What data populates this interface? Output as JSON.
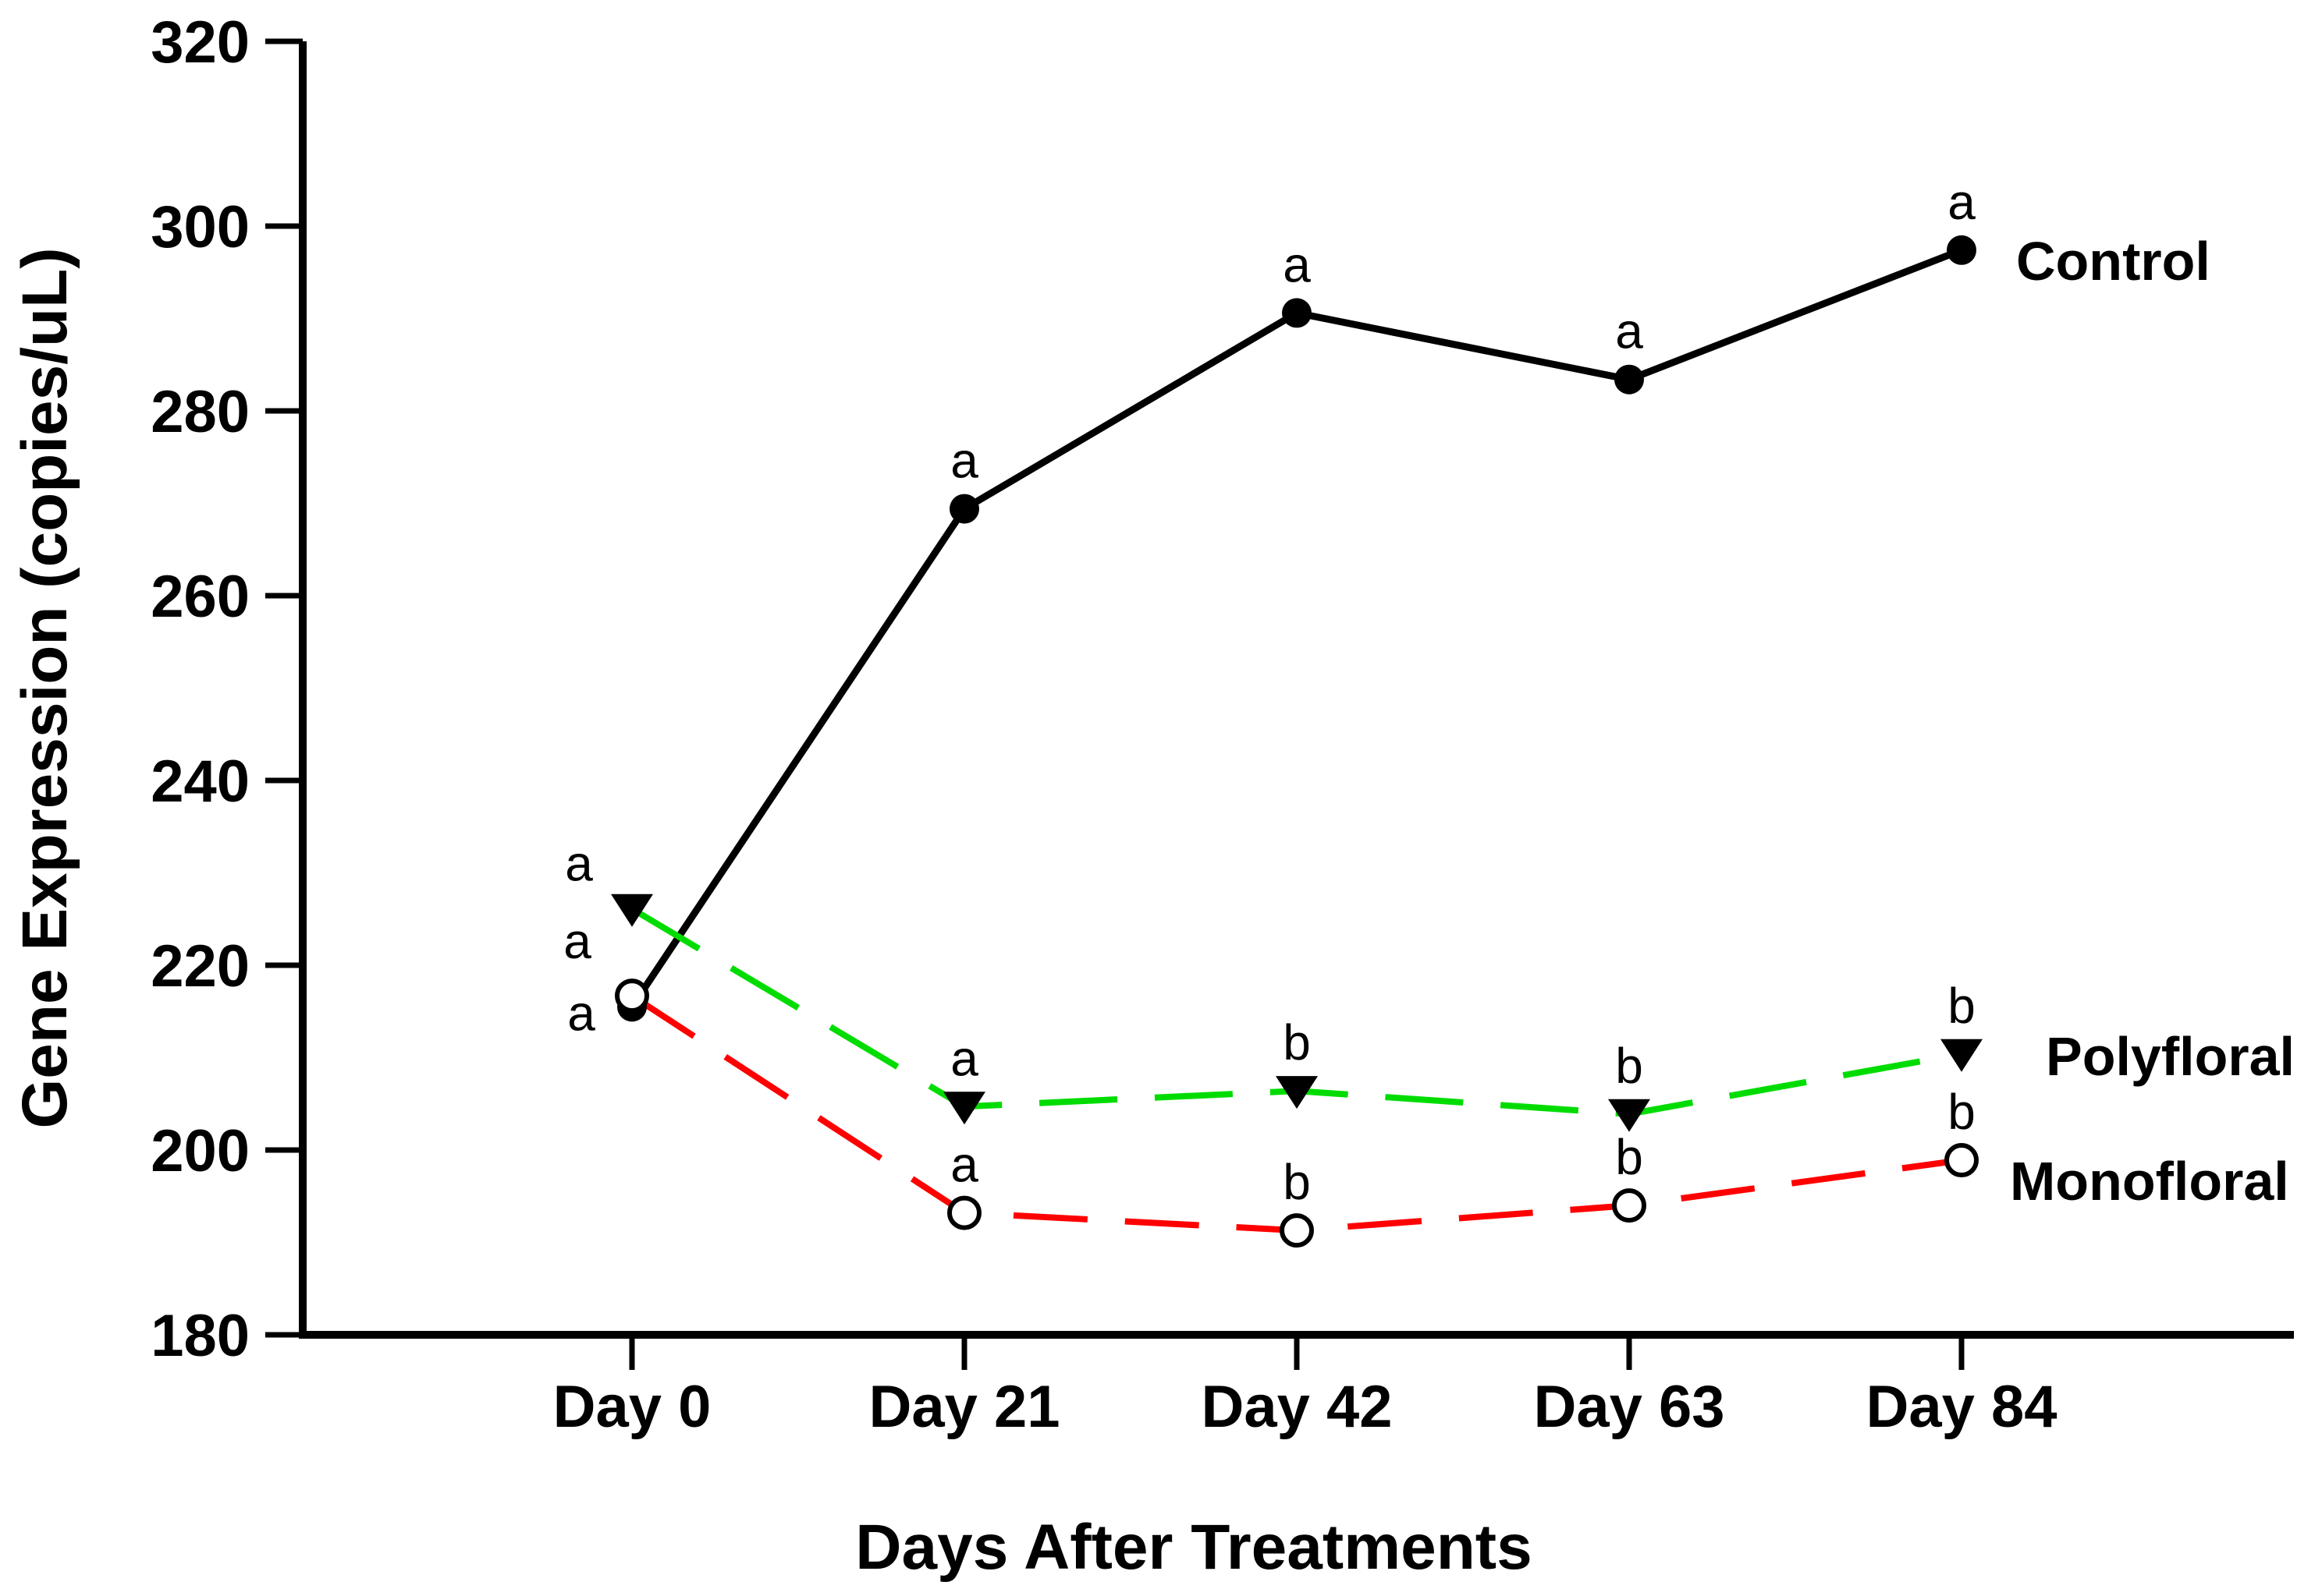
{
  "figure": {
    "background": "#ffffff",
    "axis_color": "#000000"
  },
  "chart_data": {
    "type": "line",
    "title": "",
    "xlabel": "Days After Treatments",
    "ylabel": "Gene Expression (copies/uL)",
    "categories": [
      "Day 0",
      "Day 21",
      "Day 42",
      "Day 63",
      "Day 84"
    ],
    "ylim": [
      180,
      320
    ],
    "ytick_interval": 20,
    "yticks": [
      320,
      300,
      280,
      260,
      240,
      220,
      200,
      180
    ],
    "grid": false,
    "legend_position": "inline-right-of-last-point",
    "series": [
      {
        "name": "Control",
        "color": "#000000",
        "line_style": "solid",
        "marker": "filled-circle",
        "marker_color": "#000000",
        "values": [
          215.5,
          269.4,
          290.6,
          283.4,
          297.4
        ],
        "sig_letters": [
          "a",
          "a",
          "a",
          "a",
          "a"
        ]
      },
      {
        "name": "Polyfloral",
        "color": "#00DC00",
        "line_style": "dashed",
        "marker": "filled-triangle-down",
        "marker_color": "#000000",
        "values": [
          226.1,
          204.7,
          206.4,
          203.9,
          210.4
        ],
        "sig_letters": [
          "a",
          "a",
          "b",
          "b",
          "b"
        ]
      },
      {
        "name": "Monofloral",
        "color": "#FF0000",
        "line_style": "dashed",
        "marker": "open-circle",
        "marker_color": "#000000",
        "values": [
          216.7,
          193.2,
          191.3,
          194.0,
          198.9
        ],
        "sig_letters": [
          "a",
          "a",
          "b",
          "b",
          "b"
        ]
      }
    ]
  }
}
